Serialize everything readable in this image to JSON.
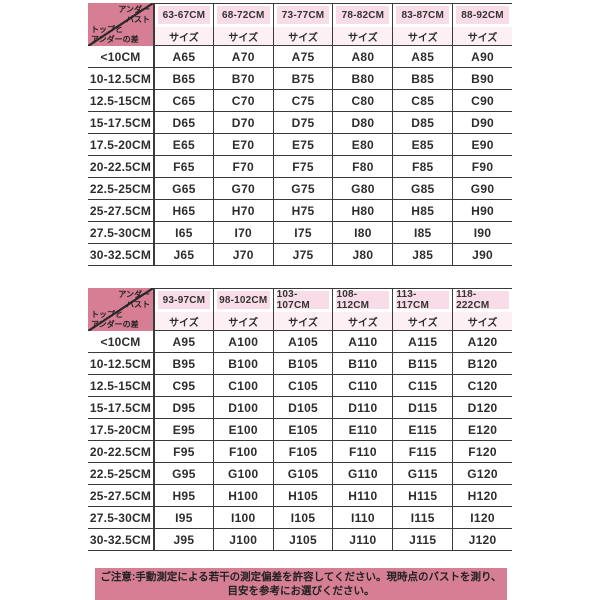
{
  "colors": {
    "accent_pink": "#d57e94",
    "header_cell_pink": "#f8dce7",
    "size_row_pink": "#fcf0f5",
    "border": "#3a3a3a",
    "text": "#2d2d2d"
  },
  "corner": {
    "top_right_line1": "アンダー",
    "top_right_line2": "バスト",
    "bottom_left_line1": "トップと",
    "bottom_left_line2": "アンダーの差"
  },
  "tables": [
    {
      "size_label": "サイズ",
      "columns": [
        "63-67CM",
        "68-72CM",
        "73-77CM",
        "78-82CM",
        "83-87CM",
        "88-92CM"
      ],
      "rows": [
        {
          "label": "<10CM",
          "values": [
            "A65",
            "A70",
            "A75",
            "A80",
            "A85",
            "A90"
          ]
        },
        {
          "label": "10-12.5CM",
          "values": [
            "B65",
            "B70",
            "B75",
            "B80",
            "B85",
            "B90"
          ]
        },
        {
          "label": "12.5-15CM",
          "values": [
            "C65",
            "C70",
            "C75",
            "C80",
            "C85",
            "C90"
          ]
        },
        {
          "label": "15-17.5CM",
          "values": [
            "D65",
            "D70",
            "D75",
            "D80",
            "D85",
            "D90"
          ]
        },
        {
          "label": "17.5-20CM",
          "values": [
            "E65",
            "E70",
            "E75",
            "E80",
            "E85",
            "E90"
          ]
        },
        {
          "label": "20-22.5CM",
          "values": [
            "F65",
            "F70",
            "F75",
            "F80",
            "F85",
            "F90"
          ]
        },
        {
          "label": "22.5-25CM",
          "values": [
            "G65",
            "G70",
            "G75",
            "G80",
            "G85",
            "G90"
          ]
        },
        {
          "label": "25-27.5CM",
          "values": [
            "H65",
            "H70",
            "H75",
            "H80",
            "H85",
            "H90"
          ]
        },
        {
          "label": "27.5-30CM",
          "values": [
            "I65",
            "I70",
            "I75",
            "I80",
            "I85",
            "I90"
          ]
        },
        {
          "label": "30-32.5CM",
          "values": [
            "J65",
            "J70",
            "J75",
            "J80",
            "J85",
            "J90"
          ]
        }
      ]
    },
    {
      "size_label": "サイズ",
      "columns": [
        "93-97CM",
        "98-102CM",
        "103-107CM",
        "108-112CM",
        "113-117CM",
        "118-222CM"
      ],
      "rows": [
        {
          "label": "<10CM",
          "values": [
            "A95",
            "A100",
            "A105",
            "A110",
            "A115",
            "A120"
          ]
        },
        {
          "label": "10-12.5CM",
          "values": [
            "B95",
            "B100",
            "B105",
            "B110",
            "B115",
            "B120"
          ]
        },
        {
          "label": "12.5-15CM",
          "values": [
            "C95",
            "C100",
            "C105",
            "C110",
            "C115",
            "C120"
          ]
        },
        {
          "label": "15-17.5CM",
          "values": [
            "D95",
            "D100",
            "D105",
            "D110",
            "D115",
            "D120"
          ]
        },
        {
          "label": "17.5-20CM",
          "values": [
            "E95",
            "E100",
            "E105",
            "E110",
            "E115",
            "E120"
          ]
        },
        {
          "label": "20-22.5CM",
          "values": [
            "F95",
            "F100",
            "F105",
            "F110",
            "F115",
            "F120"
          ]
        },
        {
          "label": "22.5-25CM",
          "values": [
            "G95",
            "G100",
            "G105",
            "G110",
            "G115",
            "G120"
          ]
        },
        {
          "label": "25-27.5CM",
          "values": [
            "H95",
            "H100",
            "H105",
            "H110",
            "H115",
            "H120"
          ]
        },
        {
          "label": "27.5-30CM",
          "values": [
            "I95",
            "I100",
            "I105",
            "I110",
            "I115",
            "I120"
          ]
        },
        {
          "label": "30-32.5CM",
          "values": [
            "J95",
            "J100",
            "J105",
            "J110",
            "J115",
            "J120"
          ]
        }
      ]
    }
  ],
  "note": {
    "line1": "ご注意:手動測定による若干の測定偏差を許容してください。現時点のバストを測り、",
    "line2": "目安を参考にお選びください。"
  }
}
